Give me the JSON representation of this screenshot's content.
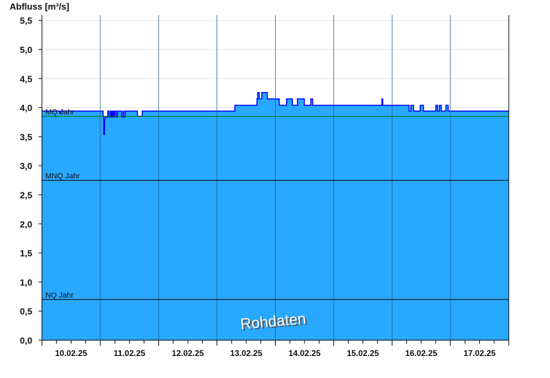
{
  "chart_data": {
    "type": "area",
    "title": "",
    "ylabel": "Abfluss [m³/s]",
    "xlabel": "",
    "ylim": [
      0,
      5.6
    ],
    "yticks": [
      "0,0",
      "0,5",
      "1,0",
      "1,5",
      "2,0",
      "2,5",
      "3,0",
      "3,5",
      "4,0",
      "4,5",
      "5,0",
      "5,5"
    ],
    "ytick_values": [
      0,
      0.5,
      1,
      1.5,
      2,
      2.5,
      3,
      3.5,
      4,
      4.5,
      5,
      5.5
    ],
    "xlim": [
      "10.02.25 00:00",
      "18.02.25 00:00"
    ],
    "xticks": [
      "10.02.25",
      "11.02.25",
      "12.02.25",
      "13.02.25",
      "14.02.25",
      "15.02.25",
      "16.02.25",
      "17.02.25"
    ],
    "grid": true,
    "watermark": "Rohdaten",
    "colors": {
      "fill": "#29a8ff",
      "line": "#0000ff",
      "mq": "#007a00",
      "ref": "#000000",
      "grid": "#e6e6e6",
      "dayline": "#1f5f8a"
    },
    "reference_lines": [
      {
        "label": "MQ Jahr",
        "value": 3.85
      },
      {
        "label": "MNQ Jahr",
        "value": 2.75
      },
      {
        "label": "NQ Jahr",
        "value": 0.7
      }
    ],
    "series": [
      {
        "type": "step",
        "points": [
          [
            "10.02.25 00:00",
            3.94
          ],
          [
            "10.02.25 07:20",
            3.9
          ],
          [
            "10.02.25 07:40",
            3.94
          ],
          [
            "11.02.25 01:10",
            3.85
          ],
          [
            "11.02.25 01:25",
            3.54
          ],
          [
            "11.02.25 01:45",
            3.8
          ],
          [
            "11.02.25 02:00",
            3.84
          ],
          [
            "11.02.25 03:05",
            3.94
          ],
          [
            "11.02.25 03:40",
            3.84
          ],
          [
            "11.02.25 04:15",
            3.94
          ],
          [
            "11.02.25 04:40",
            3.84
          ],
          [
            "11.02.25 05:05",
            3.94
          ],
          [
            "11.02.25 05:30",
            3.84
          ],
          [
            "11.02.25 05:55",
            3.94
          ],
          [
            "11.02.25 06:35",
            3.84
          ],
          [
            "11.02.25 07:05",
            3.94
          ],
          [
            "11.02.25 08:45",
            3.84
          ],
          [
            "11.02.25 09:20",
            3.94
          ],
          [
            "11.02.25 09:35",
            3.84
          ],
          [
            "11.02.25 10:10",
            3.94
          ],
          [
            "11.02.25 15:15",
            3.85
          ],
          [
            "11.02.25 17:15",
            3.94
          ],
          [
            "13.02.25 07:20",
            4.04
          ],
          [
            "13.02.25 16:25",
            4.15
          ],
          [
            "13.02.25 16:45",
            4.26
          ],
          [
            "13.02.25 17:20",
            4.15
          ],
          [
            "13.02.25 18:25",
            4.26
          ],
          [
            "13.02.25 20:40",
            4.15
          ],
          [
            "14.02.25 01:35",
            4.04
          ],
          [
            "14.02.25 04:35",
            4.15
          ],
          [
            "14.02.25 07:00",
            4.04
          ],
          [
            "14.02.25 09:05",
            4.15
          ],
          [
            "14.02.25 11:55",
            4.04
          ],
          [
            "14.02.25 14:35",
            4.15
          ],
          [
            "14.02.25 15:20",
            4.04
          ],
          [
            "15.02.25 19:50",
            4.15
          ],
          [
            "15.02.25 20:10",
            4.04
          ],
          [
            "16.02.25 07:00",
            3.94
          ],
          [
            "16.02.25 07:45",
            4.04
          ],
          [
            "16.02.25 08:50",
            3.94
          ],
          [
            "16.02.25 11:35",
            4.04
          ],
          [
            "16.02.25 12:55",
            3.94
          ],
          [
            "16.02.25 18:00",
            4.04
          ],
          [
            "16.02.25 18:45",
            3.94
          ],
          [
            "16.02.25 19:30",
            4.04
          ],
          [
            "16.02.25 20:15",
            3.94
          ],
          [
            "16.02.25 22:10",
            4.04
          ],
          [
            "16.02.25 23:05",
            3.94
          ],
          [
            "18.02.25 00:00",
            3.94
          ]
        ]
      }
    ]
  }
}
